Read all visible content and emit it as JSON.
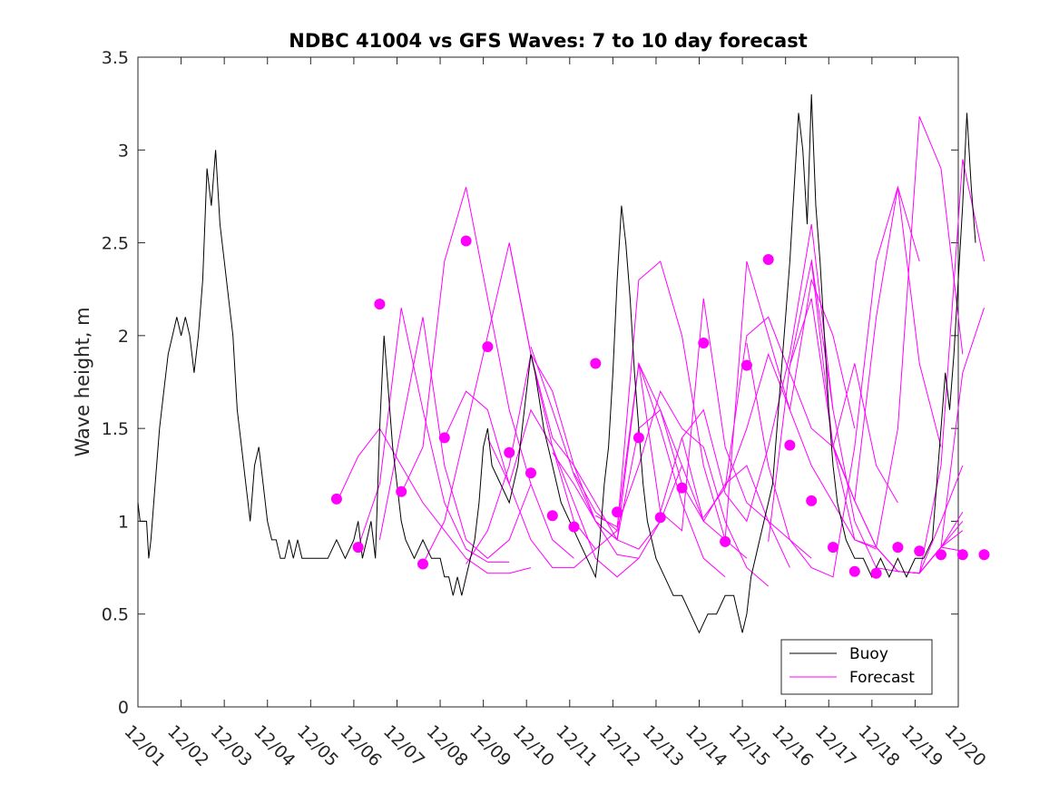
{
  "chart_data": {
    "type": "line",
    "title": "NDBC 41004 vs GFS Waves: 7 to 10 day forecast",
    "xlabel": "",
    "ylabel": "Wave height, m",
    "xlim": [
      0,
      19
    ],
    "ylim": [
      0,
      3.5
    ],
    "yticks": [
      0,
      0.5,
      1,
      1.5,
      2,
      2.5,
      3,
      3.5
    ],
    "ytick_labels": [
      "0",
      "0.5",
      "1",
      "1.5",
      "2",
      "2.5",
      "3",
      "3.5"
    ],
    "xtick_labels": [
      "12/01",
      "12/02",
      "12/03",
      "12/04",
      "12/05",
      "12/06",
      "12/07",
      "12/08",
      "12/09",
      "12/10",
      "12/11",
      "12/12",
      "12/13",
      "12/14",
      "12/15",
      "12/16",
      "12/17",
      "12/18",
      "12/19",
      "12/20"
    ],
    "legend": {
      "position": "bottom-right",
      "entries": [
        "Buoy",
        "Forecast"
      ]
    },
    "colors": {
      "buoy": "#000000",
      "forecast": "#ff00ff"
    },
    "series": [
      {
        "name": "Buoy",
        "x": [
          0,
          0.05,
          0.1,
          0.2,
          0.25,
          0.3,
          0.4,
          0.5,
          0.6,
          0.7,
          0.8,
          0.9,
          1.0,
          1.1,
          1.2,
          1.3,
          1.4,
          1.5,
          1.6,
          1.7,
          1.8,
          1.9,
          2.0,
          2.1,
          2.2,
          2.3,
          2.4,
          2.5,
          2.6,
          2.7,
          2.8,
          2.9,
          3.0,
          3.1,
          3.2,
          3.3,
          3.4,
          3.5,
          3.6,
          3.7,
          3.8,
          3.9,
          4.0,
          4.2,
          4.4,
          4.6,
          4.8,
          5.0,
          5.1,
          5.2,
          5.3,
          5.4,
          5.5,
          5.6,
          5.7,
          5.8,
          5.9,
          6.0,
          6.1,
          6.2,
          6.4,
          6.6,
          6.8,
          7.0,
          7.1,
          7.2,
          7.3,
          7.4,
          7.5,
          7.6,
          7.7,
          7.8,
          7.9,
          8.0,
          8.1,
          8.2,
          8.4,
          8.6,
          8.8,
          9.0,
          9.1,
          9.2,
          9.4,
          9.6,
          9.8,
          10.0,
          10.2,
          10.4,
          10.6,
          10.7,
          10.8,
          10.9,
          11.0,
          11.1,
          11.2,
          11.3,
          11.4,
          11.5,
          11.6,
          11.7,
          11.8,
          12.0,
          12.2,
          12.4,
          12.6,
          12.8,
          13.0,
          13.2,
          13.4,
          13.6,
          13.8,
          13.9,
          14.0,
          14.1,
          14.2,
          14.3,
          14.4,
          14.5,
          14.6,
          14.7,
          14.8,
          14.9,
          15.0,
          15.1,
          15.2,
          15.3,
          15.4,
          15.5,
          15.6,
          15.7,
          15.8,
          15.9,
          16.0,
          16.1,
          16.2,
          16.4,
          16.6,
          16.8,
          17.0,
          17.2,
          17.4,
          17.6,
          17.8,
          18.0,
          18.2,
          18.4,
          18.5,
          18.6,
          18.7,
          18.8,
          18.9,
          19.0,
          19.1,
          19.2,
          19.3,
          19.4
        ],
        "values": [
          1.1,
          1.0,
          1.0,
          1.0,
          0.8,
          0.9,
          1.2,
          1.5,
          1.7,
          1.9,
          2.0,
          2.1,
          2.0,
          2.1,
          2.0,
          1.8,
          2.0,
          2.3,
          2.9,
          2.7,
          3.0,
          2.6,
          2.4,
          2.2,
          2.0,
          1.6,
          1.4,
          1.2,
          1.0,
          1.3,
          1.4,
          1.2,
          1.0,
          0.9,
          0.9,
          0.8,
          0.8,
          0.9,
          0.8,
          0.9,
          0.8,
          0.8,
          0.8,
          0.8,
          0.8,
          0.9,
          0.8,
          0.9,
          1.0,
          0.8,
          0.9,
          1.0,
          0.8,
          1.5,
          2.0,
          1.7,
          1.4,
          1.2,
          1.0,
          0.9,
          0.8,
          0.9,
          0.8,
          0.8,
          0.7,
          0.7,
          0.6,
          0.7,
          0.6,
          0.7,
          0.8,
          0.9,
          1.1,
          1.4,
          1.5,
          1.3,
          1.2,
          1.1,
          1.3,
          1.7,
          1.9,
          1.8,
          1.5,
          1.3,
          1.1,
          1.0,
          0.9,
          0.8,
          0.7,
          0.9,
          1.2,
          1.4,
          1.8,
          2.3,
          2.7,
          2.5,
          2.2,
          1.8,
          1.5,
          1.2,
          1.0,
          0.8,
          0.7,
          0.6,
          0.6,
          0.5,
          0.4,
          0.5,
          0.5,
          0.6,
          0.6,
          0.5,
          0.4,
          0.5,
          0.7,
          0.8,
          0.9,
          1.0,
          1.1,
          1.2,
          1.5,
          1.8,
          2.1,
          2.4,
          2.8,
          3.2,
          3.0,
          2.6,
          3.3,
          2.7,
          2.4,
          2.0,
          1.6,
          1.3,
          1.1,
          0.9,
          0.8,
          0.8,
          0.7,
          0.8,
          0.7,
          0.8,
          0.7,
          0.8,
          0.8,
          0.9,
          1.2,
          1.5,
          1.8,
          1.6,
          1.9,
          2.3,
          2.7,
          3.2,
          2.8,
          2.5
        ]
      },
      {
        "name": "Forecast",
        "lines": [
          {
            "x": [
              4.6,
              5.1,
              5.6,
              6.1,
              6.6,
              7.1,
              7.6,
              8.1,
              8.6,
              9.1
            ],
            "values": [
              1.1,
              1.35,
              1.5,
              1.3,
              1.1,
              0.95,
              0.8,
              0.72,
              0.72,
              0.75
            ]
          },
          {
            "x": [
              5.1,
              5.6,
              6.1,
              6.6,
              7.1,
              7.6,
              8.1,
              8.6
            ],
            "values": [
              0.86,
              1.2,
              2.15,
              1.6,
              1.1,
              0.85,
              0.78,
              0.78
            ]
          },
          {
            "x": [
              5.6,
              6.1,
              6.6,
              7.1,
              7.6,
              8.1,
              8.6,
              9.1
            ],
            "values": [
              0.9,
              1.5,
              2.1,
              1.3,
              0.9,
              0.8,
              0.9,
              1.2
            ]
          },
          {
            "x": [
              6.1,
              6.6,
              7.1,
              7.6,
              8.1,
              8.6,
              9.1,
              9.6,
              10.1
            ],
            "values": [
              1.15,
              1.4,
              2.4,
              2.8,
              2.2,
              1.6,
              1.2,
              0.9,
              0.8
            ]
          },
          {
            "x": [
              6.6,
              7.1,
              7.6,
              8.1,
              8.6,
              9.1,
              9.6,
              10.1,
              10.6
            ],
            "values": [
              0.77,
              1.0,
              1.5,
              2.0,
              2.5,
              1.9,
              1.4,
              1.0,
              0.85
            ]
          },
          {
            "x": [
              7.1,
              7.6,
              8.1,
              8.6,
              9.1,
              9.6,
              10.1,
              10.6,
              11.1
            ],
            "values": [
              1.45,
              1.7,
              1.6,
              1.2,
              0.9,
              0.75,
              0.75,
              0.85,
              0.95
            ]
          },
          {
            "x": [
              7.6,
              8.1,
              8.6,
              9.1,
              9.6,
              10.1,
              10.6,
              11.1,
              11.6
            ],
            "values": [
              0.77,
              0.95,
              1.3,
              1.9,
              1.7,
              1.3,
              1.0,
              0.82,
              0.8
            ]
          },
          {
            "x": [
              8.1,
              8.6,
              9.1,
              9.6,
              10.1,
              10.6,
              11.1,
              11.6,
              12.1
            ],
            "values": [
              1.45,
              1.2,
              1.6,
              1.4,
              1.1,
              0.8,
              0.7,
              0.8,
              1.0
            ]
          },
          {
            "x": [
              8.6,
              9.1,
              9.6,
              10.1,
              10.6,
              11.1,
              11.6,
              12.1,
              12.6
            ],
            "values": [
              2.5,
              1.9,
              1.45,
              1.3,
              1.1,
              0.9,
              0.85,
              1.0,
              1.3
            ]
          },
          {
            "x": [
              9.1,
              9.6,
              10.1,
              10.6,
              11.1,
              11.6,
              12.1,
              12.6,
              13.1
            ],
            "values": [
              1.94,
              1.6,
              1.25,
              1.0,
              0.9,
              1.5,
              1.6,
              1.3,
              1.0
            ]
          },
          {
            "x": [
              9.6,
              10.1,
              10.6,
              11.1,
              11.6,
              12.1,
              12.6,
              13.1,
              13.6
            ],
            "values": [
              1.37,
              1.2,
              1.0,
              0.9,
              1.85,
              1.5,
              1.1,
              0.8,
              0.7
            ]
          },
          {
            "x": [
              10.1,
              10.6,
              11.1,
              11.6,
              12.1,
              12.6,
              13.1,
              13.6,
              14.1
            ],
            "values": [
              1.26,
              1.05,
              0.95,
              2.3,
              2.4,
              2.0,
              1.3,
              0.9,
              0.8
            ]
          },
          {
            "x": [
              10.6,
              11.1,
              11.6,
              12.1,
              12.6,
              13.1,
              13.6,
              14.1,
              14.6
            ],
            "values": [
              1.03,
              0.97,
              1.3,
              1.7,
              1.5,
              1.4,
              1.0,
              0.75,
              0.65
            ]
          },
          {
            "x": [
              11.1,
              11.6,
              12.1,
              12.6,
              13.1,
              13.6,
              14.1,
              14.6,
              15.1
            ],
            "values": [
              0.97,
              1.85,
              1.6,
              1.2,
              1.0,
              1.2,
              1.3,
              1.0,
              0.75
            ]
          },
          {
            "x": [
              11.6,
              12.1,
              12.6,
              13.1,
              13.6,
              14.1,
              14.6,
              15.1,
              15.6
            ],
            "values": [
              1.85,
              1.05,
              0.95,
              2.2,
              1.4,
              1.1,
              1.0,
              0.9,
              0.8
            ]
          },
          {
            "x": [
              12.1,
              12.6,
              13.1,
              13.6,
              14.1,
              14.6,
              15.1,
              15.6,
              16.1
            ],
            "values": [
              1.05,
              1.45,
              1.6,
              1.15,
              1.0,
              1.4,
              1.9,
              2.6,
              1.6
            ]
          },
          {
            "x": [
              12.6,
              13.1,
              13.6,
              14.1,
              14.6,
              15.1,
              15.6,
              16.1,
              16.6
            ],
            "values": [
              1.45,
              1.0,
              0.9,
              2.4,
              2.0,
              1.6,
              2.3,
              2.0,
              1.5
            ]
          },
          {
            "x": [
              13.1,
              13.6,
              14.1,
              14.6,
              15.1,
              15.6,
              16.1,
              16.6,
              17.1
            ],
            "values": [
              1.02,
              1.18,
              1.5,
              1.9,
              1.6,
              1.3,
              1.1,
              0.9,
              0.85
            ]
          },
          {
            "x": [
              13.6,
              14.1,
              14.6,
              15.1,
              15.6,
              16.1,
              16.6,
              17.1,
              17.6
            ],
            "values": [
              1.18,
              2.0,
              2.1,
              1.8,
              1.5,
              1.4,
              1.85,
              1.3,
              1.1
            ]
          },
          {
            "x": [
              14.1,
              14.6,
              15.1,
              15.6,
              16.1,
              16.6,
              17.1,
              17.6,
              18.1
            ],
            "values": [
              1.96,
              1.3,
              0.9,
              0.75,
              0.7,
              1.4,
              2.4,
              2.8,
              2.4
            ]
          },
          {
            "x": [
              14.6,
              15.1,
              15.6,
              16.1,
              16.6,
              17.1,
              17.6,
              18.1,
              18.6
            ],
            "values": [
              0.89,
              1.84,
              2.4,
              1.4,
              1.11,
              2.1,
              2.8,
              1.85,
              1.4
            ]
          },
          {
            "x": [
              15.1,
              15.6,
              16.1,
              16.6,
              17.1,
              17.6,
              18.1,
              18.6,
              19.1
            ],
            "values": [
              1.84,
              2.2,
              1.41,
              0.9,
              0.86,
              1.5,
              3.18,
              2.9,
              1.9
            ]
          },
          {
            "x": [
              15.6,
              16.1,
              16.6,
              17.1,
              17.6,
              18.1,
              18.6,
              19.1,
              19.6
            ],
            "values": [
              2.41,
              1.6,
              1.0,
              0.75,
              0.73,
              0.72,
              1.3,
              2.95,
              2.4
            ]
          },
          {
            "x": [
              16.1,
              16.6,
              17.1,
              17.6,
              18.1,
              18.6,
              19.1,
              19.6
            ],
            "values": [
              1.41,
              1.11,
              0.86,
              0.73,
              0.72,
              0.86,
              1.8,
              2.15
            ]
          },
          {
            "x": [
              16.6,
              17.1,
              17.6,
              18.1,
              18.6,
              19.1
            ],
            "values": [
              1.11,
              0.86,
              0.73,
              0.72,
              0.86,
              1.0
            ]
          },
          {
            "x": [
              17.1,
              17.6,
              18.1,
              18.6,
              19.1
            ],
            "values": [
              0.86,
              0.73,
              0.72,
              0.86,
              0.84
            ]
          },
          {
            "x": [
              17.6,
              18.1,
              18.6,
              19.1
            ],
            "values": [
              0.73,
              0.72,
              1.0,
              1.3
            ]
          },
          {
            "x": [
              18.1,
              18.6,
              19.1
            ],
            "values": [
              0.72,
              0.86,
              0.95
            ]
          },
          {
            "x": [
              18.6,
              19.1
            ],
            "values": [
              0.86,
              1.05
            ]
          }
        ],
        "markers": {
          "x": [
            4.6,
            5.1,
            5.6,
            6.1,
            6.6,
            7.1,
            7.6,
            8.1,
            8.6,
            9.1,
            9.6,
            10.1,
            10.6,
            11.1,
            11.6,
            12.1,
            12.6,
            13.1,
            13.6,
            14.1,
            14.6,
            15.1,
            15.6,
            16.1,
            16.6,
            17.1,
            17.6,
            18.1,
            18.6,
            19.1,
            19.6
          ],
          "values": [
            1.12,
            0.86,
            2.17,
            1.16,
            0.77,
            1.45,
            2.51,
            1.94,
            1.37,
            1.26,
            1.03,
            0.97,
            1.85,
            1.05,
            1.45,
            1.02,
            1.18,
            1.96,
            0.89,
            1.84,
            2.41,
            1.41,
            1.11,
            0.86,
            0.73,
            0.72,
            0.86,
            0.84,
            0.82,
            0.82,
            0.82
          ]
        }
      }
    ]
  }
}
